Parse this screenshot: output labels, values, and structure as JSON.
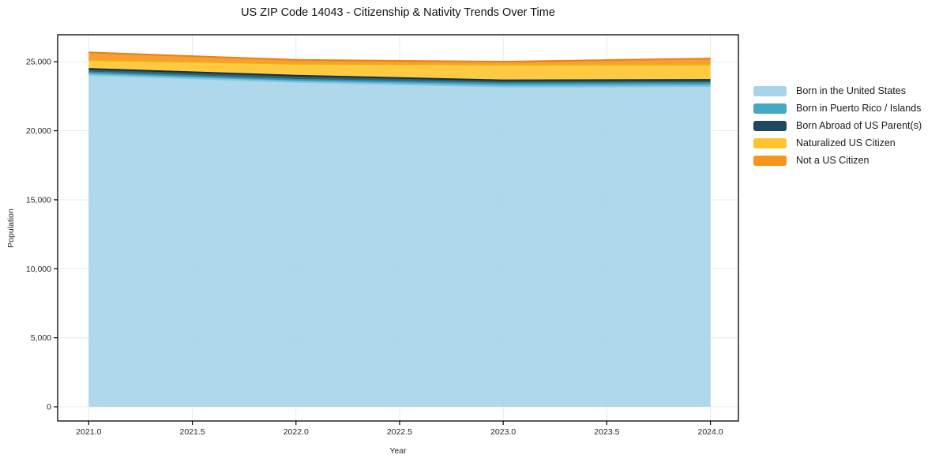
{
  "title": "US ZIP Code 14043 - Citizenship & Nativity Trends Over Time",
  "chart_data": {
    "type": "area",
    "stacked": true,
    "title": "US ZIP Code 14043 - Citizenship & Nativity Trends Over Time",
    "xlabel": "Year",
    "ylabel": "Population",
    "x": [
      2021,
      2022,
      2023,
      2024
    ],
    "series": [
      {
        "name": "Born in the United States",
        "values": [
          24050,
          23540,
          23200,
          23230
        ],
        "color": "#A6D4E9",
        "line_color": "#88C3DE"
      },
      {
        "name": "Born in Puerto Rico / Islands",
        "values": [
          190,
          170,
          230,
          230
        ],
        "color": "#45A9C6",
        "line_color": "#2E93B5"
      },
      {
        "name": "Born Abroad of US Parent(s)",
        "values": [
          250,
          290,
          230,
          230
        ],
        "color": "#1F4A5E",
        "line_color": "#123240"
      },
      {
        "name": "Naturalized US Citizen",
        "values": [
          640,
          860,
          1140,
          1120
        ],
        "color": "#FDC42E",
        "line_color": "#F2AC12"
      },
      {
        "name": "Not a US Citizen",
        "values": [
          550,
          280,
          210,
          430
        ],
        "color": "#F7941E",
        "line_color": "#EC7F0D"
      }
    ],
    "x_range": [
      2020.85,
      2024.135
    ],
    "y_range": [
      -1030,
      26960
    ],
    "x_ticks": [
      2021.0,
      2021.5,
      2022.0,
      2022.5,
      2023.0,
      2023.5,
      2024.0
    ],
    "x_tick_labels": [
      "2021.0",
      "2021.5",
      "2022.0",
      "2022.5",
      "2023.0",
      "2023.5",
      "2024.0"
    ],
    "y_ticks": [
      0,
      5000,
      10000,
      15000,
      20000,
      25000
    ],
    "y_tick_labels": [
      "0",
      "5,000",
      "10,000",
      "15,000",
      "20,000",
      "25,000"
    ],
    "grid": true,
    "legend_position": "right",
    "fill_opacity": 0.9,
    "colors": {
      "background": "#ffffff",
      "grid": "#e9e9e9",
      "spine": "#000000",
      "tick_text": "#262626"
    }
  }
}
